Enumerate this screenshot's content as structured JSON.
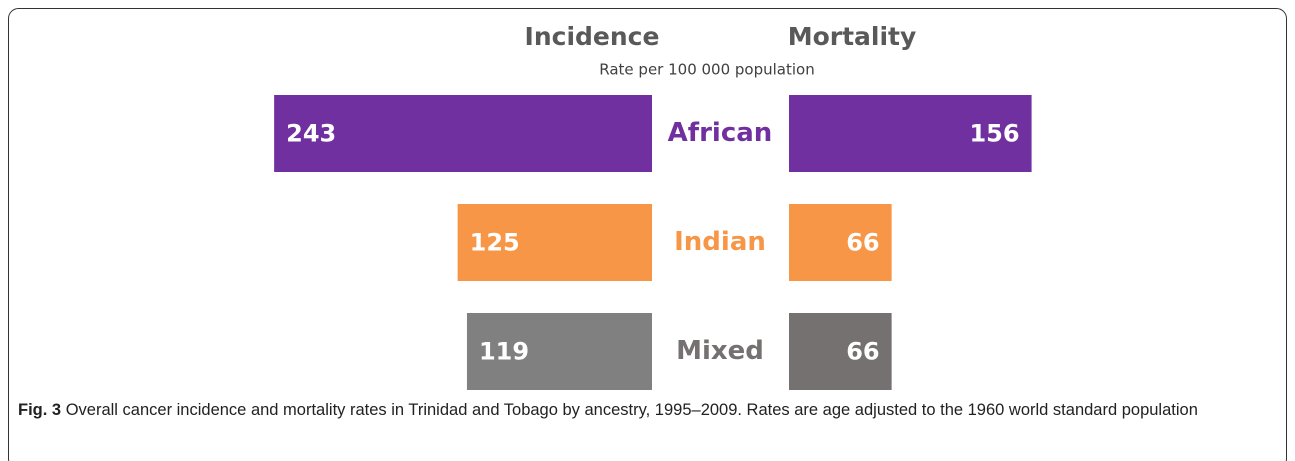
{
  "chart_data": {
    "type": "butterfly",
    "subtitle": "Rate per 100 000 population",
    "categories": [
      "African",
      "Indian",
      "Mixed"
    ],
    "category_colors": [
      "#7030a0",
      "#f79646",
      "#767171"
    ],
    "series": [
      {
        "name": "Incidence",
        "colors": [
          "#7030a0",
          "#f79646",
          "#808080"
        ],
        "values": [
          243,
          125,
          119
        ]
      },
      {
        "name": "Mortality",
        "colors": [
          "#7030a0",
          "#f79646",
          "#767171"
        ],
        "values": [
          156,
          66,
          66
        ]
      }
    ]
  },
  "caption": {
    "label": "Fig. 3",
    "text": "Overall cancer incidence and mortality rates in Trinidad and Tobago by ancestry, 1995–2009. Rates are age adjusted to the 1960 world standard population"
  }
}
